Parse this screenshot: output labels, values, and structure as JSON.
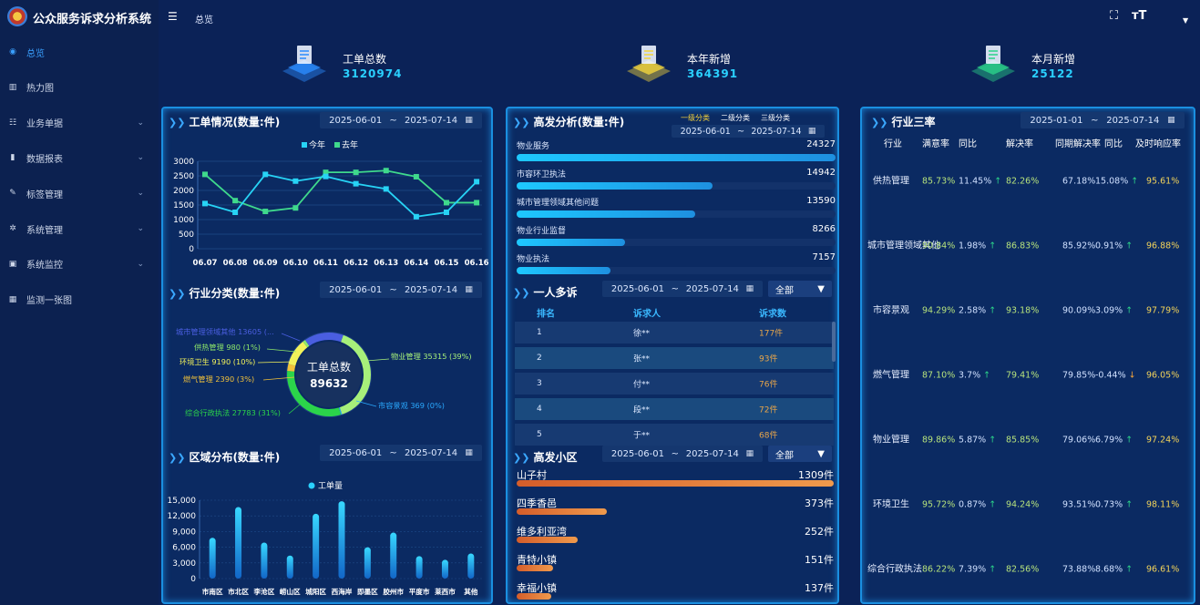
{
  "app": {
    "title": "公众服务诉求分析系统"
  },
  "sidebar": {
    "items": [
      {
        "label": "总览",
        "icon": "dashboard-icon",
        "active": true
      },
      {
        "label": "热力图",
        "icon": "map-icon"
      },
      {
        "label": "业务单据",
        "icon": "list-icon",
        "expandable": true
      },
      {
        "label": "数据报表",
        "icon": "bar-chart-icon",
        "expandable": true
      },
      {
        "label": "标签管理",
        "icon": "tag-icon",
        "expandable": true
      },
      {
        "label": "系统管理",
        "icon": "gear-icon",
        "expandable": true
      },
      {
        "label": "系统监控",
        "icon": "monitor-icon",
        "expandable": true
      },
      {
        "label": "监测一张图",
        "icon": "grid-icon"
      }
    ]
  },
  "topbar": {
    "breadcrumb": "总览"
  },
  "stats": [
    {
      "label": "工单总数",
      "value": "3120974",
      "color": "#2a8cff"
    },
    {
      "label": "本年新增",
      "value": "364391",
      "color": "#f2d53c"
    },
    {
      "label": "本月新增",
      "value": "25122",
      "color": "#2bd38a"
    }
  ],
  "date_range": {
    "start": "2025-06-01",
    "sep": "~",
    "end": "2025-07-14"
  },
  "date_range2": {
    "start": "2025-01-01",
    "sep": "~",
    "end": "2025-07-14"
  },
  "workorder": {
    "title": "工单情况(数量:件)",
    "chart_data": {
      "type": "line",
      "categories": [
        "06.07",
        "06.08",
        "06.09",
        "06.10",
        "06.11",
        "06.12",
        "06.13",
        "06.14",
        "06.15",
        "06.16"
      ],
      "series": [
        {
          "name": "今年",
          "values": [
            1550,
            1250,
            2550,
            2320,
            2480,
            2230,
            2050,
            1100,
            1250,
            2300
          ],
          "color": "#27d3f5"
        },
        {
          "name": "去年",
          "values": [
            2550,
            1650,
            1280,
            1400,
            2620,
            2620,
            2680,
            2470,
            1580,
            1580
          ],
          "color": "#3fd98c"
        }
      ],
      "ylim": [
        0,
        3000
      ],
      "yticks": [
        0,
        500,
        1000,
        1500,
        2000,
        2500,
        3000
      ]
    }
  },
  "industry": {
    "title": "行业分类(数量:件)",
    "center_label": "工单总数",
    "center_value": "89632",
    "chart_data": {
      "type": "pie",
      "slices": [
        {
          "label": "物业管理 35315 (39%)",
          "value": 35315,
          "color": "#a7f07a"
        },
        {
          "label": "市容景观 369 (0%)",
          "value": 369,
          "color": "#2aa9ff"
        },
        {
          "label": "综合行政执法 27783 (31%)",
          "value": 27783,
          "color": "#2bd44a"
        },
        {
          "label": "燃气管理 2390 (3%)",
          "value": 2390,
          "color": "#f2c23a"
        },
        {
          "label": "环境卫生 9190 (10%)",
          "value": 9190,
          "color": "#f2f25a"
        },
        {
          "label": "供热管理 980 (1%)",
          "value": 980,
          "color": "#8ee86a"
        },
        {
          "label": "城市管理领域其他 13605 (...",
          "value": 13605,
          "color": "#4a5ee0"
        }
      ]
    }
  },
  "district": {
    "title": "区域分布(数量:件)",
    "chart_data": {
      "type": "bar",
      "series": [
        {
          "name": "工单量"
        }
      ],
      "categories": [
        "市南区",
        "市北区",
        "李沧区",
        "崂山区",
        "城阳区",
        "西海岸",
        "即墨区",
        "胶州市",
        "平度市",
        "莱西市",
        "其他"
      ],
      "values": [
        7800,
        13700,
        6900,
        4400,
        12400,
        14800,
        6000,
        8800,
        4300,
        3600,
        4800
      ],
      "ylim": [
        0,
        15000
      ],
      "yticks": [
        "0",
        "3,000",
        "6,000",
        "9,000",
        "12,000",
        "15,000"
      ]
    }
  },
  "hotspot": {
    "title": "高发分析(数量:件)",
    "tabs": [
      "一级分类",
      "二级分类",
      "三级分类"
    ],
    "items": [
      {
        "name": "物业服务",
        "value": 24327
      },
      {
        "name": "市容环卫执法",
        "value": 14942
      },
      {
        "name": "城市管理领域其他问题",
        "value": 13590
      },
      {
        "name": "物业行业监督",
        "value": 8266
      },
      {
        "name": "物业执法",
        "value": 7157
      }
    ]
  },
  "repeat": {
    "title": "一人多诉",
    "select": "全部",
    "headers": [
      "排名",
      "诉求人",
      "诉求数"
    ],
    "rows": [
      {
        "rank": "1",
        "name": "徐**",
        "count": "177件"
      },
      {
        "rank": "2",
        "name": "张**",
        "count": "93件"
      },
      {
        "rank": "3",
        "name": "付**",
        "count": "76件"
      },
      {
        "rank": "4",
        "name": "段**",
        "count": "72件"
      },
      {
        "rank": "5",
        "name": "于**",
        "count": "68件"
      }
    ]
  },
  "community": {
    "title": "高发小区",
    "select": "全部",
    "items": [
      {
        "name": "山子村",
        "value": "1309件",
        "n": 1309
      },
      {
        "name": "四季香邑",
        "value": "373件",
        "n": 373
      },
      {
        "name": "维多利亚湾",
        "value": "252件",
        "n": 252
      },
      {
        "name": "青特小镇",
        "value": "151件",
        "n": 151
      },
      {
        "name": "幸福小镇",
        "value": "137件",
        "n": 137
      }
    ]
  },
  "rates": {
    "title": "行业三率",
    "headers": [
      "行业",
      "满意率",
      "同比",
      "解决率",
      "同期解决率",
      "同比",
      "及时响应率"
    ],
    "rows": [
      {
        "industry": "供热管理",
        "sat": "85.73%",
        "yoy1": "11.45%",
        "yoy1_dir": "up",
        "solve": "82.26%",
        "prev": "67.18%",
        "yoy2": "15.08%",
        "yoy2_dir": "up",
        "timely": "95.61%"
      },
      {
        "industry": "城市管理领域其他",
        "sat": "90.84%",
        "yoy1": "1.98%",
        "yoy1_dir": "up",
        "solve": "86.83%",
        "prev": "85.92%",
        "yoy2": "0.91%",
        "yoy2_dir": "up",
        "timely": "96.88%"
      },
      {
        "industry": "市容景观",
        "sat": "94.29%",
        "yoy1": "2.58%",
        "yoy1_dir": "up",
        "solve": "93.18%",
        "prev": "90.09%",
        "yoy2": "3.09%",
        "yoy2_dir": "up",
        "timely": "97.79%"
      },
      {
        "industry": "燃气管理",
        "sat": "87.10%",
        "yoy1": "3.7%",
        "yoy1_dir": "up",
        "solve": "79.41%",
        "prev": "79.85%",
        "yoy2": "-0.44%",
        "yoy2_dir": "down",
        "timely": "96.05%"
      },
      {
        "industry": "物业管理",
        "sat": "89.86%",
        "yoy1": "5.87%",
        "yoy1_dir": "up",
        "solve": "85.85%",
        "prev": "79.06%",
        "yoy2": "6.79%",
        "yoy2_dir": "up",
        "timely": "97.24%"
      },
      {
        "industry": "环境卫生",
        "sat": "95.72%",
        "yoy1": "0.87%",
        "yoy1_dir": "up",
        "solve": "94.24%",
        "prev": "93.51%",
        "yoy2": "0.73%",
        "yoy2_dir": "up",
        "timely": "98.11%"
      },
      {
        "industry": "综合行政执法",
        "sat": "86.22%",
        "yoy1": "7.39%",
        "yoy1_dir": "up",
        "solve": "82.56%",
        "prev": "73.88%",
        "yoy2": "8.68%",
        "yoy2_dir": "up",
        "timely": "96.61%"
      }
    ]
  }
}
